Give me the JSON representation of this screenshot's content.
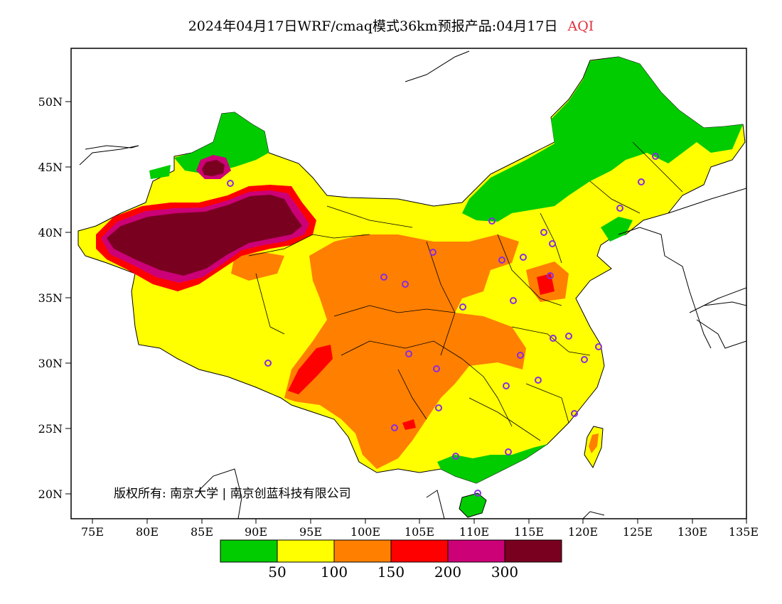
{
  "title": {
    "main": "2024年04月17日WRF/cmaq模式36km预报产品:04月17日",
    "variable": "AQI"
  },
  "axes": {
    "lat_labels": [
      "50N",
      "45N",
      "40N",
      "35N",
      "30N",
      "25N",
      "20N"
    ],
    "lon_labels": [
      "75E",
      "80E",
      "85E",
      "90E",
      "95E",
      "100E",
      "105E",
      "110E",
      "115E",
      "120E",
      "125E",
      "130E",
      "135E"
    ]
  },
  "legend": {
    "colors": [
      "#00cc00",
      "#ffff00",
      "#ff7f00",
      "#ff0000",
      "#cc0077",
      "#7a0020"
    ],
    "labels": [
      "50",
      "100",
      "150",
      "200",
      "300"
    ]
  },
  "copyright": "版权所有: 南京大学 | 南京创蓝科技有限公司",
  "colors": {
    "good": "#00cc00",
    "moderate": "#ffff00",
    "unhealthy_sensitive": "#ff7f00",
    "unhealthy": "#ff0000",
    "very_unhealthy": "#cc0077",
    "hazardous": "#7a0020",
    "station_marker": "#8a2be2"
  }
}
